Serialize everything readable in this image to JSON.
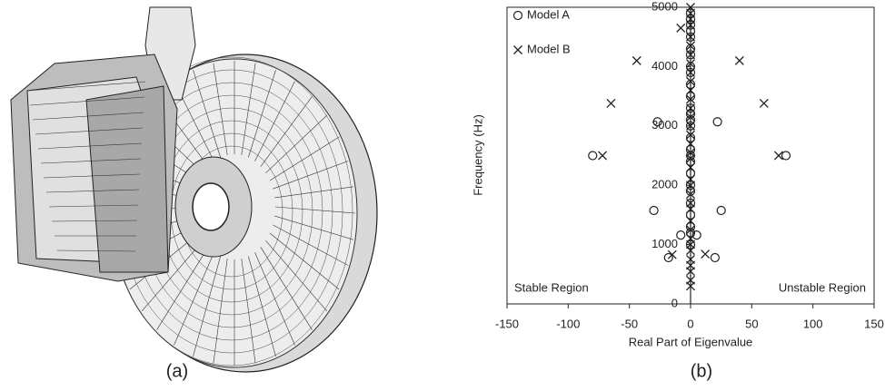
{
  "figure": {
    "panel_labels": [
      "(a)",
      "(b)"
    ]
  },
  "chart_data": {
    "type": "scatter",
    "xlabel": "Real Part of Eigenvalue",
    "ylabel": "Frequency (Hz)",
    "xlim": [
      -150,
      150
    ],
    "xticks": [
      -150,
      -100,
      -50,
      0,
      50,
      100,
      150
    ],
    "ylim": [
      0,
      5000
    ],
    "yticks": [
      0,
      1000,
      2000,
      3000,
      4000,
      5000
    ],
    "legend": "upper left",
    "annotations": [
      "Stable Region",
      "Unstable Region"
    ],
    "series": [
      {
        "name": "Model A",
        "marker": "circle",
        "color": "#222222",
        "x": [
          -80,
          78,
          -30,
          25,
          -27,
          22,
          -8,
          5,
          -18,
          20,
          0,
          0,
          0,
          0,
          0,
          0,
          0,
          0,
          0,
          0,
          0,
          0,
          0,
          0,
          0,
          0,
          0,
          0,
          0,
          0,
          0,
          0,
          0,
          0,
          0,
          0,
          0
        ],
        "values": [
          2500,
          2500,
          1575,
          1575,
          3070,
          3070,
          1160,
          1160,
          780,
          780,
          1000,
          1200,
          1300,
          1500,
          1700,
          1900,
          2000,
          2200,
          2400,
          2500,
          2600,
          2800,
          3000,
          3100,
          3200,
          3300,
          3500,
          3700,
          3900,
          4000,
          4200,
          4300,
          4500,
          4600,
          4700,
          4800,
          4900
        ]
      },
      {
        "name": "Model B",
        "marker": "cross",
        "color": "#222222",
        "x": [
          -72,
          72,
          -65,
          60,
          -44,
          40,
          -15,
          12,
          -8,
          0,
          0,
          0,
          0,
          0,
          0,
          0,
          0,
          0,
          0,
          0,
          0,
          0,
          0,
          0,
          0,
          0,
          0,
          0,
          0,
          0,
          0,
          0,
          0,
          0,
          0,
          0,
          0,
          0,
          0,
          0,
          0,
          0,
          0,
          0
        ],
        "values": [
          2500,
          2500,
          3380,
          3380,
          4100,
          4100,
          830,
          840,
          4650,
          300,
          400,
          550,
          650,
          750,
          900,
          1000,
          1100,
          1250,
          1400,
          1600,
          1700,
          1850,
          2000,
          2100,
          2300,
          2450,
          2550,
          2700,
          2850,
          3000,
          3150,
          3300,
          3450,
          3600,
          3750,
          3900,
          4050,
          4200,
          4350,
          4500,
          4700,
          4800,
          4900,
          5000
        ]
      }
    ]
  }
}
